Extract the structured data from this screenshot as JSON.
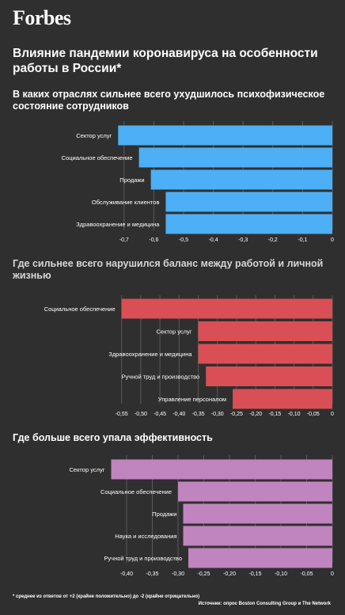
{
  "header": {
    "logo": "Forbes",
    "title": "Влияние пандемии коронавируса на особенности работы в России*"
  },
  "footer": {
    "footnote": "* среднее из ответов от +2 (крайне положительно) до -2 (крайне отрицательно)",
    "source": "Источник: опрос Boston Consulting Group и The Network"
  },
  "chart_data": [
    {
      "type": "bar",
      "orientation": "horizontal",
      "title": "В каких отраслях сильнее всего ухудшилось психофизическое состояние сотрудников",
      "categories": [
        "Сектор услуг",
        "Социальное обеспечение",
        "Продажи",
        "Обслуживание клиентов",
        "Здравоохранение и медицина"
      ],
      "values": [
        -0.72,
        -0.65,
        -0.61,
        -0.56,
        -0.56
      ],
      "xlim": [
        -0.75,
        0
      ],
      "ticks": [
        -0.7,
        -0.6,
        -0.5,
        -0.4,
        -0.3,
        -0.2,
        -0.1,
        0
      ],
      "tick_labels": [
        "-0,7",
        "-0,6",
        "-0,5",
        "-0,4",
        "-0,3",
        "-0,2",
        "-0,1",
        "0"
      ],
      "color": "#4daff5",
      "grid": true
    },
    {
      "type": "bar",
      "orientation": "horizontal",
      "title": "Где сильнее всего нарушился баланс между работой и личной жизнью",
      "categories": [
        "Социальное обеспечение",
        "Сектор услуг",
        "Здравоохранение и медицина",
        "Ручной труд и производство",
        "Управление персоналом"
      ],
      "values": [
        -0.55,
        -0.35,
        -0.35,
        -0.33,
        -0.26
      ],
      "xlim": [
        -0.57,
        0
      ],
      "ticks": [
        -0.55,
        -0.5,
        -0.45,
        -0.4,
        -0.35,
        -0.3,
        -0.25,
        -0.2,
        -0.15,
        -0.1,
        -0.05,
        0
      ],
      "tick_labels": [
        "-0,55",
        "-0,50",
        "-0,45",
        "-0,40",
        "-0,35",
        "-0,30",
        "-0,25",
        "-0,20",
        "-0,15",
        "-0,10",
        "-0,05",
        "0"
      ],
      "color": "#d94f55",
      "grid": true
    },
    {
      "type": "bar",
      "orientation": "horizontal",
      "title": "Где больше всего упала эффективность",
      "categories": [
        "Сектор услуг",
        "Социальное обеспечение",
        "Продажи",
        "Наука и исследования",
        "Ручной труд и производство"
      ],
      "values": [
        -0.43,
        -0.3,
        -0.29,
        -0.29,
        -0.28
      ],
      "xlim": [
        -0.44,
        0
      ],
      "ticks": [
        -0.4,
        -0.35,
        -0.3,
        -0.25,
        -0.2,
        -0.15,
        -0.1,
        -0.05,
        0
      ],
      "tick_labels": [
        "-0,40",
        "-0,35",
        "-0,30",
        "-0,25",
        "-0,20",
        "-0,15",
        "-0,10",
        "-0,05",
        "0"
      ],
      "color": "#c084bf",
      "grid": true
    }
  ]
}
